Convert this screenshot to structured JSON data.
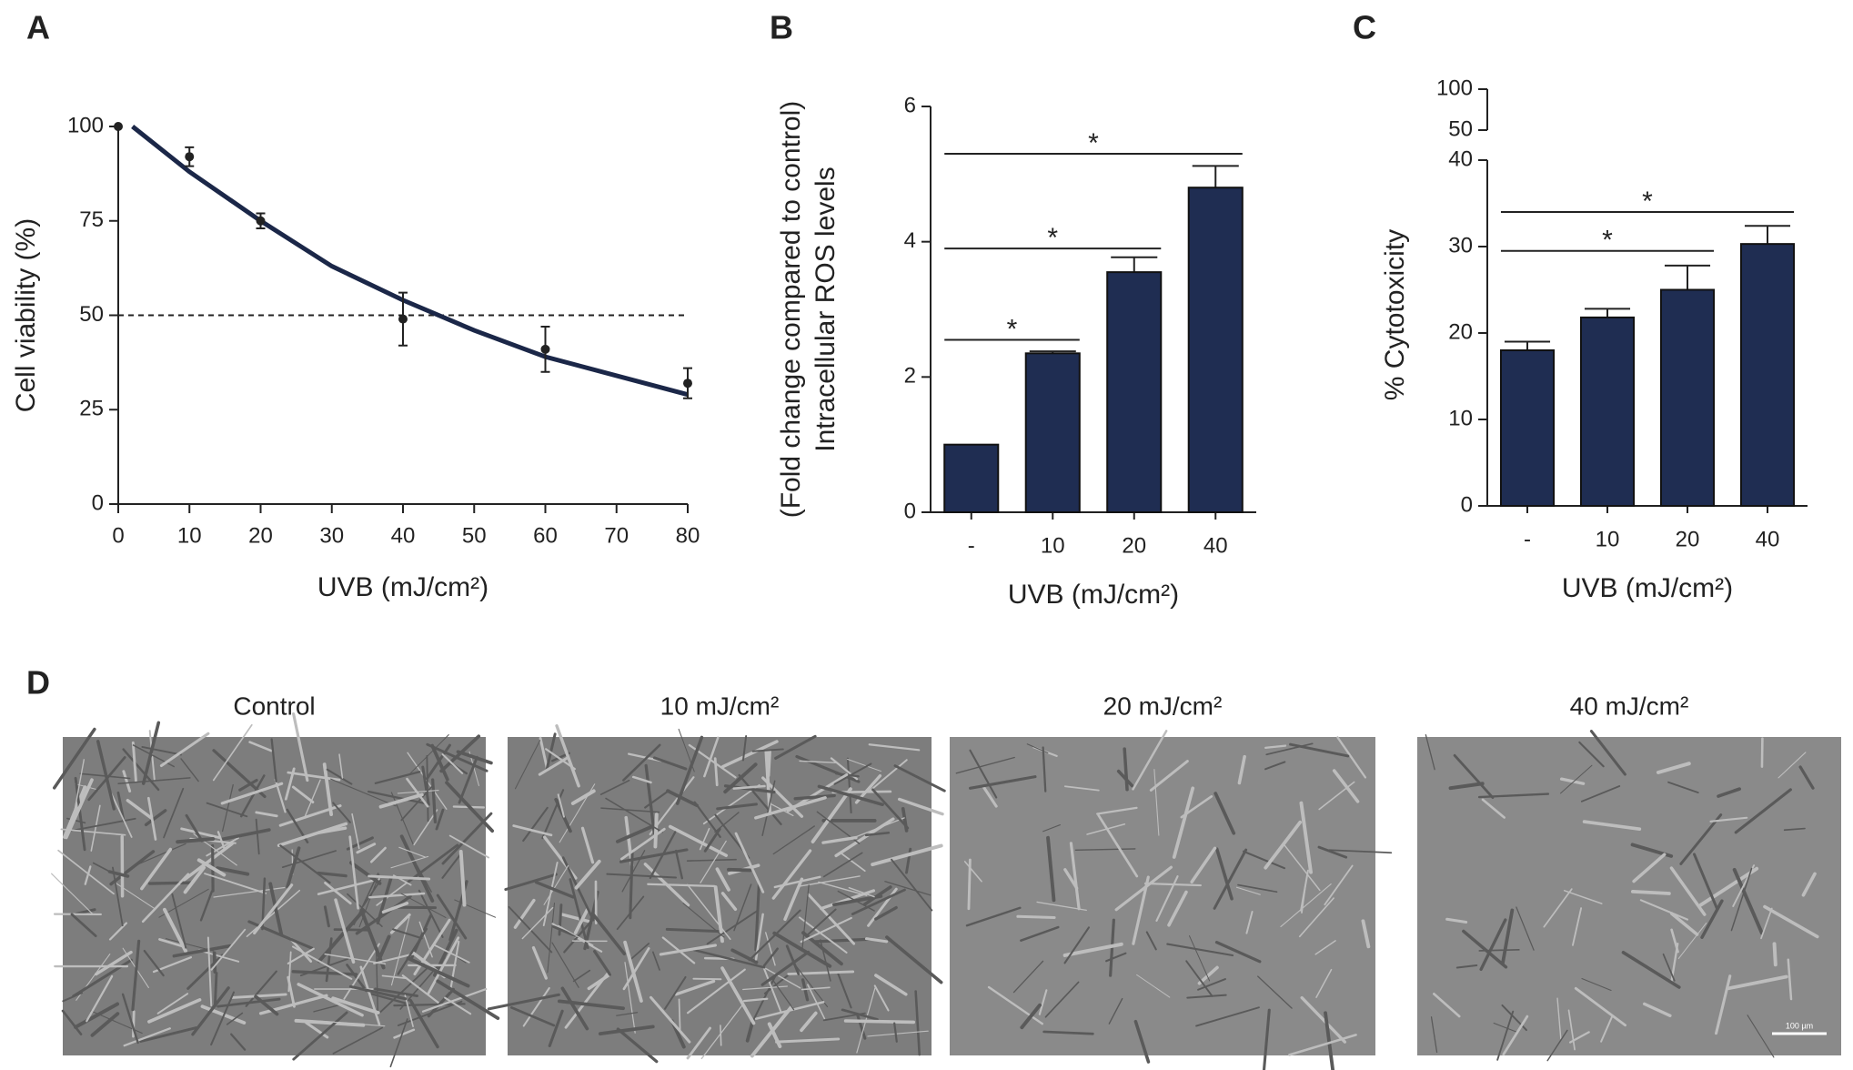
{
  "chart_data": [
    {
      "panel": "A",
      "type": "line",
      "x_label": "UVB (mJ/cm²)",
      "y_label": "Cell viability (%)",
      "x": [
        0,
        10,
        20,
        40,
        60,
        80
      ],
      "values": [
        100,
        92,
        75,
        49,
        41,
        32
      ],
      "errors": [
        0,
        2.5,
        2,
        7,
        6,
        4
      ],
      "curve": {
        "x": [
          2,
          10,
          20,
          30,
          40,
          50,
          60,
          70,
          80
        ],
        "values": [
          100,
          88,
          75,
          63,
          54,
          46,
          39,
          34,
          29
        ]
      },
      "reference_line": 50,
      "color": "#1b2748",
      "xlim": [
        0,
        80
      ],
      "xticks": [
        0,
        10,
        20,
        30,
        40,
        50,
        60,
        70,
        80
      ],
      "ylim": [
        0,
        100
      ],
      "yticks": [
        0,
        25,
        50,
        75,
        100
      ]
    },
    {
      "panel": "B",
      "type": "bar",
      "x_label": "UVB (mJ/cm²)",
      "y_label": [
        "Intracellular ROS levels",
        "(Fold change compared to control)"
      ],
      "categories": [
        "-",
        "10",
        "20",
        "40"
      ],
      "values": [
        1,
        2.35,
        3.55,
        4.8
      ],
      "errors": [
        0,
        0.03,
        0.22,
        0.32
      ],
      "color": "#1f2d52",
      "ylim": [
        0,
        6
      ],
      "yticks": [
        0,
        2,
        4,
        6
      ],
      "significance": [
        {
          "from": 0,
          "to": 1,
          "y": 2.55,
          "label": "*"
        },
        {
          "from": 0,
          "to": 2,
          "y": 3.9,
          "label": "*"
        },
        {
          "from": 0,
          "to": 3,
          "y": 5.3,
          "label": "*"
        }
      ]
    },
    {
      "panel": "C",
      "type": "bar",
      "x_label": "UVB (mJ/cm²)",
      "y_label": "% Cytotoxicity",
      "categories": [
        "-",
        "10",
        "20",
        "40"
      ],
      "values": [
        18,
        21.8,
        25,
        30.3
      ],
      "errors": [
        1,
        1,
        2.8,
        2.1
      ],
      "color": "#1f2d52",
      "ylim": [
        0,
        40
      ],
      "yticks": [
        0,
        10,
        20,
        30,
        40
      ],
      "upper_ylim": [
        50,
        100
      ],
      "upper_yticks": [
        50,
        100
      ],
      "significance": [
        {
          "from": 0,
          "to": 2,
          "y": 29.5,
          "label": "*"
        },
        {
          "from": 0,
          "to": 3,
          "y": 34,
          "label": "*"
        }
      ]
    }
  ],
  "panel_d": {
    "label": "D",
    "images": [
      {
        "title": "Control"
      },
      {
        "title": "10 mJ/cm²"
      },
      {
        "title": "20 mJ/cm²"
      },
      {
        "title": "40 mJ/cm²"
      }
    ],
    "scale_bar": "100 µm"
  }
}
